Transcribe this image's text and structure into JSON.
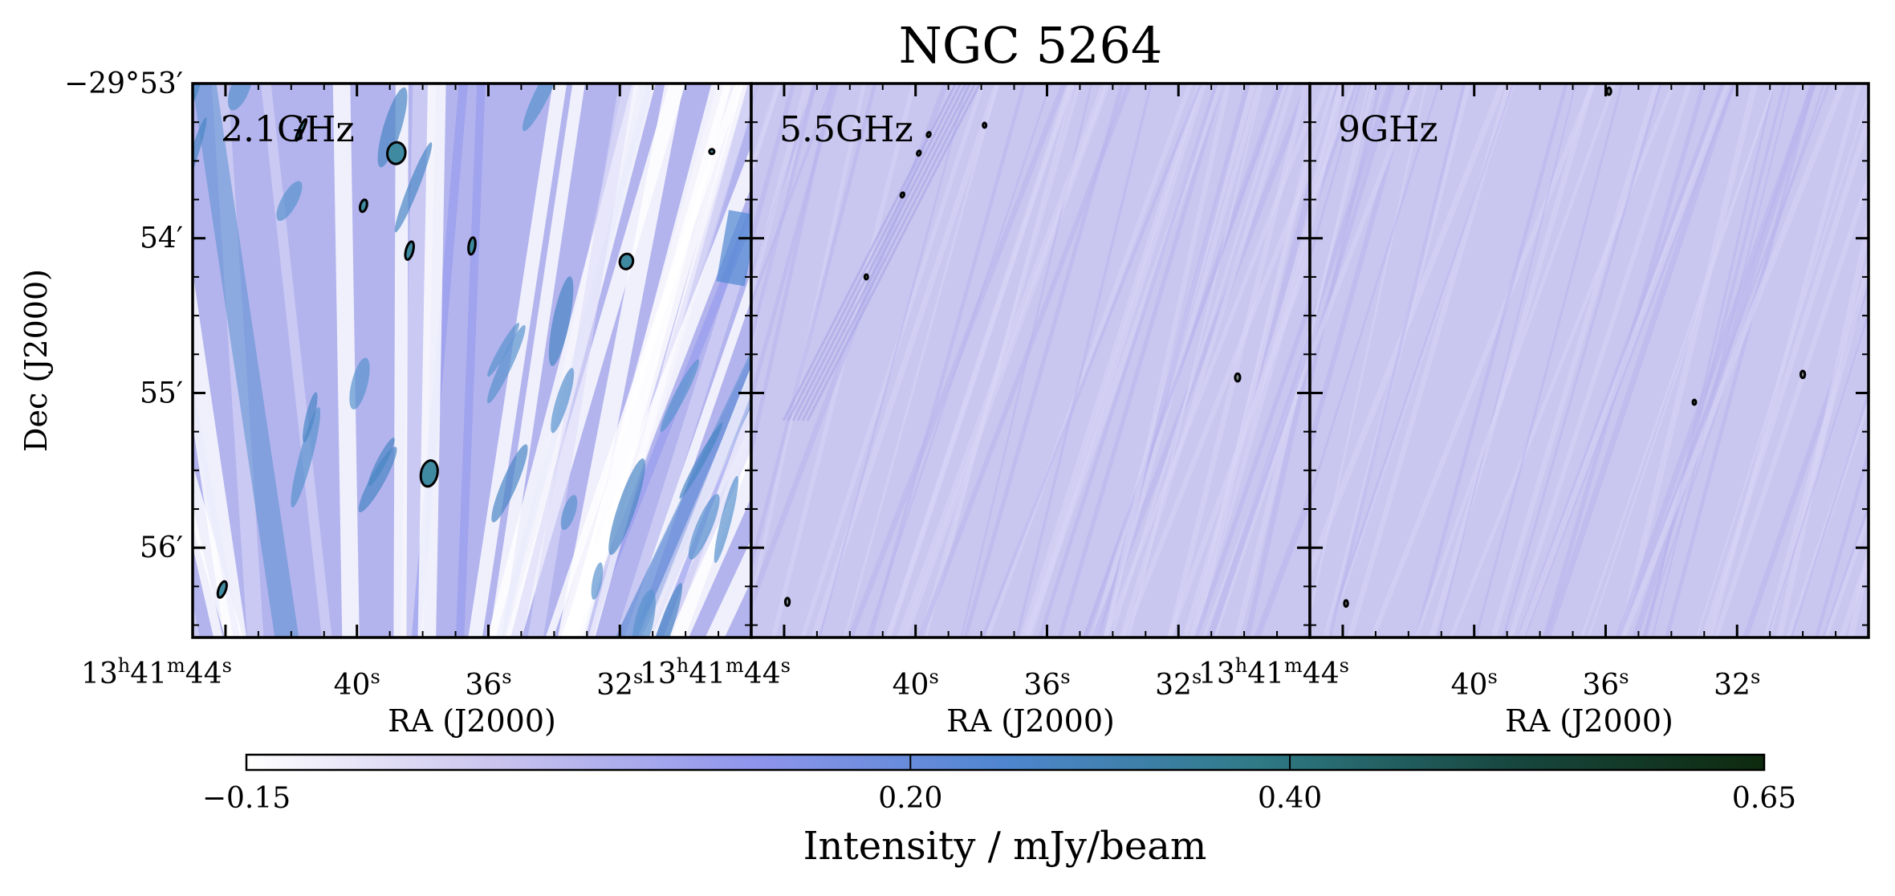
{
  "chart_data": {
    "type": "heatmap",
    "title": "NGC 5264",
    "xlabel": "RA (J2000)",
    "ylabel": "Dec (J2000)",
    "panels": [
      {
        "label": "2.1GHz",
        "x_ticks": [
          {
            "value": 44,
            "parts": [
              "13",
              "h",
              "41",
              "m",
              "44",
              "s"
            ]
          },
          {
            "value": 40,
            "parts": [
              "",
              "",
              "",
              "",
              "40",
              "s"
            ]
          },
          {
            "value": 36,
            "parts": [
              "",
              "",
              "",
              "",
              "36",
              "s"
            ]
          },
          {
            "value": 32,
            "parts": [
              "",
              "",
              "",
              "",
              "32",
              "s"
            ]
          }
        ],
        "contours": [
          {
            "ra": 38.8,
            "dec": 53.45,
            "ra_w": 0.55,
            "dec_h": 0.14,
            "rot": 8
          },
          {
            "ra": 41.7,
            "dec": 53.3,
            "ra_w": 0.12,
            "dec_h": 0.15,
            "rot": 25
          },
          {
            "ra": 39.8,
            "dec": 53.79,
            "ra_w": 0.2,
            "dec_h": 0.08,
            "rot": 15
          },
          {
            "ra": 38.4,
            "dec": 54.08,
            "ra_w": 0.22,
            "dec_h": 0.12,
            "rot": 15
          },
          {
            "ra": 36.5,
            "dec": 54.05,
            "ra_w": 0.2,
            "dec_h": 0.11,
            "rot": 8
          },
          {
            "ra": 31.8,
            "dec": 54.15,
            "ra_w": 0.4,
            "dec_h": 0.1,
            "rot": 15
          },
          {
            "ra": 37.8,
            "dec": 55.52,
            "ra_w": 0.5,
            "dec_h": 0.17,
            "rot": 12
          },
          {
            "ra": 44.1,
            "dec": 56.27,
            "ra_w": 0.22,
            "dec_h": 0.11,
            "rot": 20
          },
          {
            "ra": 29.2,
            "dec": 53.44,
            "ra_w": 0.15,
            "dec_h": 0.03,
            "rot": 0
          }
        ]
      },
      {
        "label": "5.5GHz",
        "x_ticks": [
          {
            "value": 44,
            "parts": [
              "13",
              "h",
              "41",
              "m",
              "44",
              "s"
            ]
          },
          {
            "value": 40,
            "parts": [
              "",
              "",
              "",
              "",
              "40",
              "s"
            ]
          },
          {
            "value": 36,
            "parts": [
              "",
              "",
              "",
              "",
              "36",
              "s"
            ]
          },
          {
            "value": 32,
            "parts": [
              "",
              "",
              "",
              "",
              "32",
              "s"
            ]
          }
        ],
        "contours": [
          {
            "ra": 30.2,
            "dec": 54.9,
            "ra_w": 0.15,
            "dec_h": 0.05,
            "rot": 0
          },
          {
            "ra": 43.9,
            "dec": 56.35,
            "ra_w": 0.13,
            "dec_h": 0.05,
            "rot": 0
          },
          {
            "ra": 39.6,
            "dec": 53.33,
            "ra_w": 0.1,
            "dec_h": 0.03,
            "rot": 20
          },
          {
            "ra": 39.9,
            "dec": 53.45,
            "ra_w": 0.1,
            "dec_h": 0.03,
            "rot": 20
          },
          {
            "ra": 40.4,
            "dec": 53.72,
            "ra_w": 0.1,
            "dec_h": 0.03,
            "rot": 20
          },
          {
            "ra": 37.9,
            "dec": 53.27,
            "ra_w": 0.08,
            "dec_h": 0.02,
            "rot": 0
          },
          {
            "ra": 41.5,
            "dec": 54.25,
            "ra_w": 0.06,
            "dec_h": 0.015,
            "rot": 0
          }
        ]
      },
      {
        "label": "9GHz",
        "x_ticks": [
          {
            "value": 44,
            "parts": [
              "13",
              "h",
              "41",
              "m",
              "44",
              "s"
            ]
          },
          {
            "value": 40,
            "parts": [
              "",
              "",
              "",
              "",
              "40",
              "s"
            ]
          },
          {
            "value": 36,
            "parts": [
              "",
              "",
              "",
              "",
              "36",
              "s"
            ]
          },
          {
            "value": 32,
            "parts": [
              "",
              "",
              "",
              "",
              "32",
              "s"
            ]
          }
        ],
        "contours": [
          {
            "ra": 35.9,
            "dec": 53.05,
            "ra_w": 0.13,
            "dec_h": 0.045,
            "rot": 0
          },
          {
            "ra": 30.0,
            "dec": 54.88,
            "ra_w": 0.13,
            "dec_h": 0.045,
            "rot": 0
          },
          {
            "ra": 43.9,
            "dec": 56.36,
            "ra_w": 0.11,
            "dec_h": 0.04,
            "rot": 0
          },
          {
            "ra": 33.3,
            "dec": 55.06,
            "ra_w": 0.06,
            "dec_h": 0.02,
            "rot": 0
          }
        ]
      }
    ],
    "x_range_seconds": [
      45,
      28
    ],
    "y_range_arcmin": [
      53.0,
      56.58
    ],
    "y_ticks": [
      {
        "value": 53,
        "label": "−29°53′"
      },
      {
        "value": 54,
        "label": "54′"
      },
      {
        "value": 55,
        "label": "55′"
      },
      {
        "value": 56,
        "label": "56′"
      }
    ],
    "colorbar": {
      "label": "Intensity / mJy/beam",
      "min": -0.15,
      "max": 0.65,
      "ticks": [
        -0.15,
        0.2,
        0.4,
        0.65
      ],
      "tick_labels": [
        "−0.15",
        "0.20",
        "0.40",
        "0.65"
      ],
      "colors": [
        "#ffffff",
        "#c9c3ee",
        "#8f95ec",
        "#4f86cf",
        "#2f7a86",
        "#17473f",
        "#0e2a0e"
      ]
    },
    "noise_level": 0.0,
    "colors": {
      "contour": "#000000"
    }
  }
}
